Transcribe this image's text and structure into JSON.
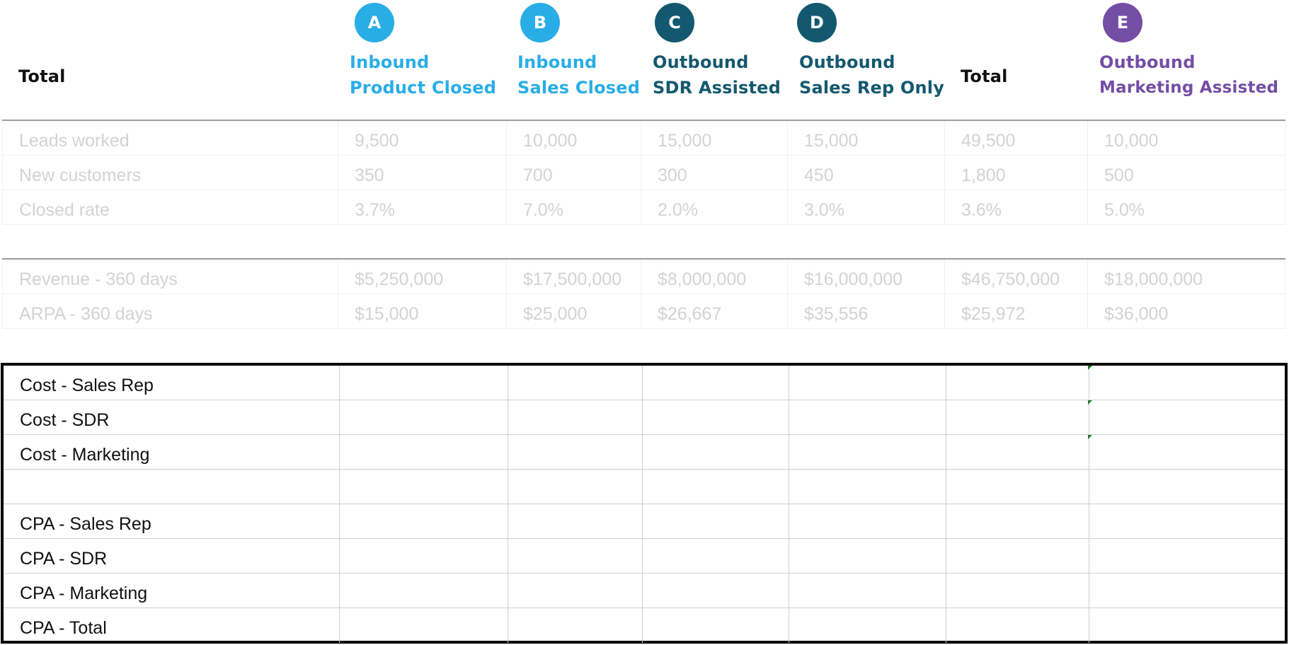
{
  "header": {
    "col0_label": "Total",
    "col1": {
      "badge": "A",
      "line1": "Inbound",
      "line2": "Product Closed"
    },
    "col2": {
      "badge": "B",
      "line1": "Inbound",
      "line2": "Sales Closed"
    },
    "col3": {
      "badge": "C",
      "line1": "Outbound",
      "line2": "SDR Assisted"
    },
    "col4": {
      "badge": "D",
      "line1": "Outbound",
      "line2": "Sales Rep Only"
    },
    "col5_label": "Total",
    "col6": {
      "badge": "E",
      "line1": "Outbound",
      "line2": "Marketing Assisted"
    }
  },
  "colors": {
    "inbound": "#29ade6",
    "outbound": "#14586f",
    "marketing": "#744ea5"
  },
  "leads_table": {
    "rows": [
      [
        "Leads worked",
        "9,500",
        "10,000",
        "15,000",
        "15,000",
        "49,500",
        "10,000"
      ],
      [
        "New customers",
        "350",
        "700",
        "300",
        "450",
        "1,800",
        "500"
      ],
      [
        "Closed rate",
        "3.7%",
        "7.0%",
        "2.0%",
        "3.0%",
        "3.6%",
        "5.0%"
      ]
    ]
  },
  "revenue_table": {
    "rows": [
      [
        "Revenue - 360 days",
        "$5,250,000",
        "$17,500,000",
        "$8,000,000",
        "$16,000,000",
        "$46,750,000",
        "$18,000,000"
      ],
      [
        "ARPA - 360 days",
        "$15,000",
        "$25,000",
        "$26,667",
        "$35,556",
        "$25,972",
        "$36,000"
      ]
    ]
  },
  "cost_table": {
    "rows": [
      [
        "Cost - Sales Rep",
        "",
        "",
        "",
        "",
        "",
        ""
      ],
      [
        "Cost - SDR",
        "",
        "",
        "",
        "",
        "",
        ""
      ],
      [
        "Cost - Marketing",
        "",
        "",
        "",
        "",
        "",
        ""
      ],
      [
        "",
        "",
        "",
        "",
        "",
        "",
        ""
      ],
      [
        "CPA - Sales Rep",
        "",
        "",
        "",
        "",
        "",
        ""
      ],
      [
        "CPA - SDR",
        "",
        "",
        "",
        "",
        "",
        ""
      ],
      [
        "CPA - Marketing",
        "",
        "",
        "",
        "",
        "",
        ""
      ],
      [
        "CPA - Total",
        "",
        "",
        "",
        "",
        "",
        ""
      ]
    ]
  }
}
